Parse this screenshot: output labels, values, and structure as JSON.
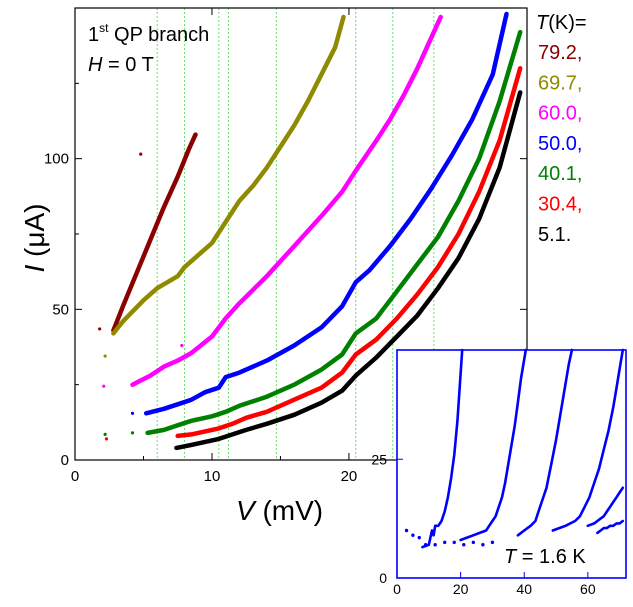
{
  "chart_data": [
    {
      "type": "scatter",
      "title_line1_main": "1",
      "title_line1_sup": "st",
      "title_line1_rest": " QP branch",
      "title_line2_var": "H",
      "title_line2_rest": " = 0 T",
      "xlabel_var": "V",
      "xlabel_unit": " (mV)",
      "ylabel_var": "I",
      "ylabel_unit": " (μA)",
      "xlim": [
        0,
        33
      ],
      "ylim": [
        0,
        150
      ],
      "xticks": [
        "0",
        "10",
        "20"
      ],
      "yticks": [
        "0",
        "50",
        "100"
      ],
      "dip_voltages_mV": [
        6.0,
        8.0,
        10.5,
        11.2,
        14.7,
        20.5,
        23.2,
        26.2
      ],
      "legend_title_var": "T",
      "legend_title_rest": "(K)=",
      "series": [
        {
          "name": "79.2,",
          "color": "#8b0000",
          "x": [
            2.8,
            3.5,
            4.5,
            5.5,
            6.5,
            7.5,
            8.3,
            8.8
          ],
          "y": [
            43,
            51,
            62,
            73,
            84,
            94,
            103,
            108
          ],
          "stray_x": [
            1.8,
            4.8
          ],
          "stray_y": [
            43.5,
            101.5
          ]
        },
        {
          "name": "69.7,",
          "color": "#8f8a00",
          "x": [
            2.8,
            3.5,
            5.0,
            6.0,
            7.5,
            8.0,
            9.0,
            10.0,
            11.0,
            12.0,
            13.0,
            14.0,
            15.0,
            16.0,
            17.0,
            18.0,
            19.0,
            19.6
          ],
          "y": [
            42,
            46,
            53,
            57,
            61,
            64,
            68,
            72,
            79,
            86,
            91,
            97,
            104,
            111,
            119,
            128,
            137,
            147
          ],
          "stray_x": [
            2.2
          ],
          "stray_y": [
            34.5
          ]
        },
        {
          "name": "60.0,",
          "color": "#ff00ff",
          "x": [
            4.2,
            5.5,
            6.5,
            7.5,
            8.5,
            10.0,
            11.0,
            12.0,
            14.0,
            16.0,
            18.0,
            19.5,
            20.5,
            22.0,
            23.0,
            24.0,
            25.0,
            26.0,
            26.7
          ],
          "y": [
            25,
            28,
            31,
            33,
            35.5,
            41,
            47,
            52,
            61,
            71,
            81,
            89,
            96,
            106,
            113,
            121,
            130,
            140,
            147
          ],
          "stray_x": [
            2.1,
            7.8
          ],
          "stray_y": [
            24.5,
            38
          ]
        },
        {
          "name": "50.0,",
          "color": "#0000ff",
          "x": [
            5.2,
            6.5,
            7.5,
            8.5,
            9.5,
            10.5,
            11.0,
            12.0,
            14.0,
            16.0,
            18.0,
            19.5,
            20.5,
            21.5,
            23.0,
            24.5,
            26.0,
            27.5,
            29.0,
            30.5,
            31.5
          ],
          "y": [
            15.5,
            17,
            18.5,
            20,
            22.5,
            24,
            27.5,
            29,
            33,
            38,
            44,
            51,
            59,
            63,
            71,
            80,
            90,
            101,
            113,
            128,
            148
          ],
          "stray_x": [
            4.2
          ],
          "stray_y": [
            15.5
          ]
        },
        {
          "name": "40.1,",
          "color": "#008000",
          "x": [
            5.3,
            6.5,
            7.5,
            8.5,
            10.0,
            11.0,
            12.0,
            14.0,
            16.0,
            18.0,
            19.5,
            20.5,
            22.0,
            23.5,
            25.0,
            26.5,
            28.0,
            29.5,
            31.0,
            32.5
          ],
          "y": [
            9,
            10,
            11.5,
            13,
            14.5,
            16,
            18,
            21,
            25,
            30,
            35,
            42,
            47,
            56,
            65,
            74,
            86,
            100,
            119,
            142
          ],
          "stray_x": [
            2.2,
            4.2
          ],
          "stray_y": [
            8.5,
            9
          ]
        },
        {
          "name": "30.4,",
          "color": "#ff0000",
          "x": [
            7.5,
            8.5,
            9.5,
            10.5,
            11.5,
            12.5,
            14.0,
            16.0,
            18.0,
            19.5,
            20.5,
            22.0,
            23.5,
            25.0,
            26.5,
            28.0,
            29.5,
            31.0,
            32.5
          ],
          "y": [
            8,
            8.5,
            9.5,
            10.5,
            12,
            14,
            16,
            20,
            24,
            29,
            35,
            40,
            47,
            55,
            64,
            75,
            89,
            106,
            130
          ],
          "stray_x": [
            2.3
          ],
          "stray_y": [
            7
          ]
        },
        {
          "name": "5.1.",
          "color": "#000000",
          "x": [
            7.4,
            8.5,
            9.5,
            10.5,
            11.5,
            12.5,
            14.0,
            16.0,
            18.0,
            19.5,
            20.5,
            22.0,
            23.5,
            25.0,
            26.5,
            28.0,
            29.5,
            31.0,
            32.5
          ],
          "y": [
            4,
            5,
            6,
            7,
            8.5,
            10,
            12,
            15,
            19,
            23,
            28,
            34,
            41,
            48,
            57,
            67,
            80,
            97,
            122
          ],
          "stray_x": [],
          "stray_y": []
        }
      ]
    },
    {
      "type": "scatter",
      "title": "inset",
      "label_var": "T",
      "label_rest": " = 1.6 K",
      "xlim": [
        0,
        72
      ],
      "ylim": [
        0,
        48
      ],
      "xticks": [
        "0",
        "20",
        "40",
        "60"
      ],
      "yticks": [
        "0",
        "25"
      ],
      "color": "#0000ff",
      "branches": [
        {
          "x": [
            8,
            10,
            11,
            11.5,
            12,
            13,
            14,
            15,
            16,
            17,
            18,
            19,
            20.5
          ],
          "y": [
            6.5,
            7,
            10,
            9,
            11,
            11,
            12,
            14,
            17,
            21,
            26,
            33,
            48
          ]
        },
        {
          "x": [
            20,
            22,
            24,
            26,
            28,
            29,
            30,
            31,
            32,
            33,
            34,
            35,
            36,
            37,
            38,
            39,
            40.5
          ],
          "y": [
            8,
            8.5,
            9,
            9.5,
            10,
            11,
            12,
            13,
            15,
            17,
            20,
            24,
            28,
            32,
            37,
            42,
            48
          ]
        },
        {
          "x": [
            38,
            40,
            42,
            43.5,
            44.5,
            45.5,
            47,
            48.5,
            50,
            51.5,
            53,
            54,
            55
          ],
          "y": [
            9,
            10,
            11,
            12,
            14,
            16,
            19,
            24,
            29,
            35,
            41,
            45,
            48
          ]
        },
        {
          "x": [
            49,
            51,
            53,
            54.5,
            56,
            57.5,
            59,
            60.5,
            62,
            63.5,
            65,
            66.5,
            68,
            69,
            70,
            71
          ],
          "y": [
            10,
            10.5,
            11,
            11.5,
            12,
            13,
            15,
            17,
            20,
            23,
            27,
            31,
            36,
            40,
            44,
            48
          ]
        },
        {
          "x": [
            60,
            62,
            63,
            64,
            65,
            66,
            67,
            68,
            69,
            70,
            71
          ],
          "y": [
            11,
            11.5,
            12,
            12.5,
            13,
            14,
            15,
            16,
            17,
            18,
            19
          ]
        },
        {
          "x": [
            63,
            64,
            65,
            66,
            67,
            68,
            69,
            70,
            71
          ],
          "y": [
            9.5,
            10,
            10.5,
            10.5,
            11,
            11,
            11.5,
            11.5,
            12
          ]
        }
      ],
      "floor_x": [
        3,
        5,
        7,
        9,
        12,
        15,
        18,
        21,
        24,
        27,
        30,
        33,
        36,
        39,
        42,
        45,
        48,
        51,
        54,
        56,
        58,
        60
      ],
      "floor_y": [
        10,
        9,
        8.5,
        7,
        7,
        7.5,
        7.5,
        7,
        7.5,
        7,
        7.5,
        7,
        7.5,
        7.5,
        8,
        8,
        7.5,
        8,
        8,
        8,
        6.5,
        7
      ]
    }
  ]
}
